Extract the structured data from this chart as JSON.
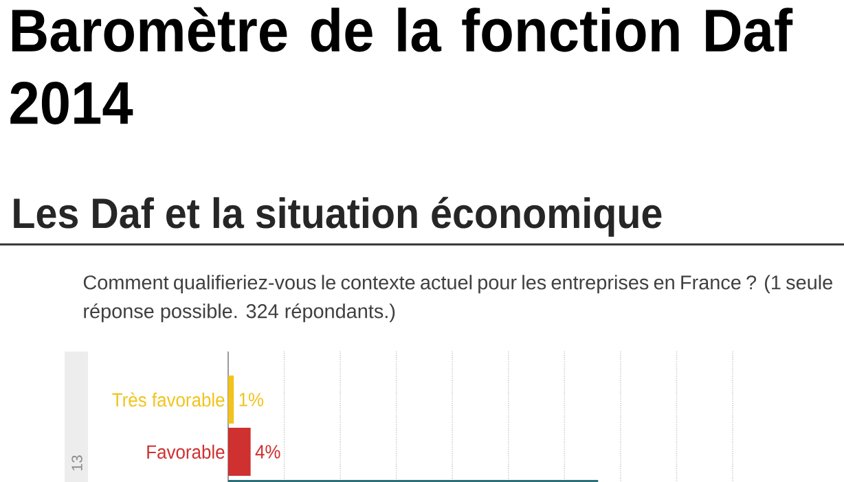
{
  "chart_data": {
    "type": "bar",
    "orientation": "horizontal",
    "title": "Baromètre de la fonction Daf 2014",
    "subtitle": "Les Daf et la situation économique",
    "annotations": [
      "Comment qualifieriez-vous le contexte actuel pour les entreprises en France ? (1 seule réponse possible. 324 répondants.)",
      "13"
    ],
    "categories": [
      "Très favorable",
      "Favorable",
      null
    ],
    "values": [
      1,
      4,
      66
    ],
    "colors": [
      "#f2c31c",
      "#cf3030",
      "#2b6f78"
    ],
    "value_labels": [
      "1%",
      "4%",
      null
    ],
    "xlim": [
      0,
      90
    ],
    "xticks": [
      {
        "value": 10,
        "label": null
      },
      {
        "value": 20,
        "label": null
      },
      {
        "value": 30,
        "label": null
      },
      {
        "value": 40,
        "label": null
      },
      {
        "value": 50,
        "label": null
      },
      {
        "value": 60,
        "label": null
      },
      {
        "value": 70,
        "label": null
      },
      {
        "value": 80,
        "label": null
      },
      {
        "value": 90,
        "label": null
      }
    ],
    "grid": "x",
    "tick_labels": "y"
  }
}
